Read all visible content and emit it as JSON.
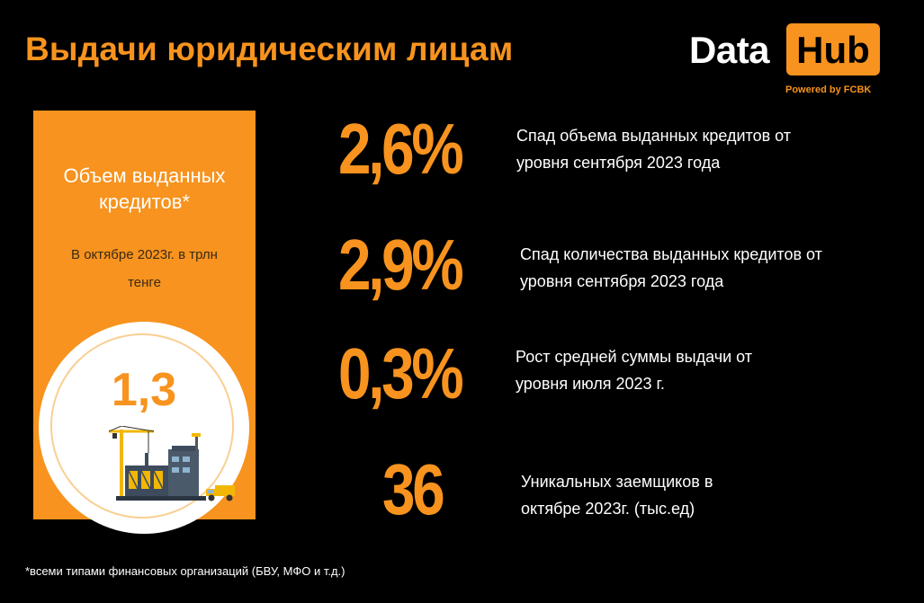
{
  "header": {
    "title": "Выдачи юридическим лицам"
  },
  "logo": {
    "data_text": "Data",
    "hub_text": "Hub",
    "powered": "Powered by FCBK"
  },
  "card": {
    "title_line1": "Объем выданных",
    "title_line2": "кредитов*",
    "subtitle_line1": "В октябре 2023г. в трлн",
    "subtitle_line2": "тенге",
    "value": "1,3",
    "illustration_icon": "construction-site-icon"
  },
  "stats": [
    {
      "value": "2,6%",
      "desc_line1": "Спад объема выданных кредитов от",
      "desc_line2": "уровня сентября 2023 года"
    },
    {
      "value": "2,9%",
      "desc_line1": "Спад количества выданных кредитов от",
      "desc_line2": "уровня сентября 2023 года"
    },
    {
      "value": "0,3%",
      "desc_line1": "Рост средней суммы выдачи от",
      "desc_line2": "уровня июля 2023 г."
    },
    {
      "value": "36",
      "desc_line1": "Уникальных заемщиков в",
      "desc_line2": "октябре 2023г. (тыс.ед)"
    }
  ],
  "footnote": "*всеми типами финансовых организаций (БВУ, МФО и т.д.)",
  "colors": {
    "accent": "#F7931E",
    "background": "#000000",
    "text": "#FFFFFF"
  }
}
